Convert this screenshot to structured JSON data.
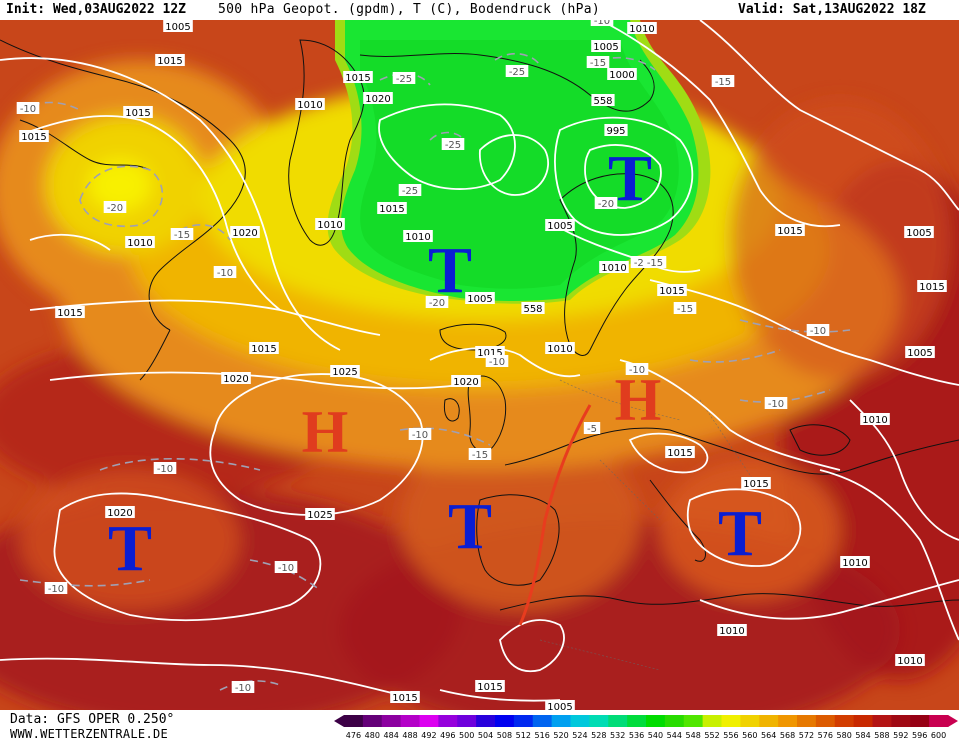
{
  "header": {
    "init": "Init: Wed,03AUG2022 12Z",
    "variables": "500 hPa Geopot. (gpdm), T (C), Bodendruck (hPa)",
    "valid": "Valid: Sat,13AUG2022 18Z"
  },
  "footer": {
    "data_source": "Data: GFS OPER 0.250°",
    "website": "WWW.WETTERZENTRALE.DE"
  },
  "legend": {
    "values": [
      "476",
      "480",
      "484",
      "488",
      "492",
      "496",
      "500",
      "504",
      "508",
      "512",
      "516",
      "520",
      "524",
      "528",
      "532",
      "536",
      "540",
      "544",
      "548",
      "552",
      "556",
      "560",
      "564",
      "568",
      "572",
      "576",
      "580",
      "584",
      "588",
      "592",
      "596",
      "600"
    ],
    "colors": [
      "#3c0046",
      "#640078",
      "#8c00a0",
      "#b400c8",
      "#dc00f0",
      "#9600dc",
      "#6e00dc",
      "#2800dc",
      "#0000f0",
      "#0028f0",
      "#0064f0",
      "#00a0f0",
      "#00c8dc",
      "#00dcb4",
      "#00dc78",
      "#00dc3c",
      "#00dc00",
      "#28dc00",
      "#50e600",
      "#c8f000",
      "#f0f000",
      "#f0d200",
      "#f0b400",
      "#f09600",
      "#e67800",
      "#dc5a00",
      "#d23c00",
      "#c82800",
      "#b41414",
      "#a00a14",
      "#960014",
      "#c80050"
    ]
  },
  "pressure_centers": [
    {
      "type": "T",
      "color": "#0a1ed2"
    },
    {
      "type": "T",
      "color": "#0a1ed2"
    },
    {
      "type": "T",
      "color": "#0a1ed2"
    },
    {
      "type": "T",
      "color": "#0a1ed2"
    },
    {
      "type": "T",
      "color": "#0a1ed2"
    },
    {
      "type": "H",
      "color": "#e03c1e"
    },
    {
      "type": "H",
      "color": "#e03c1e"
    }
  ],
  "isobar_labels": [
    "1005",
    "1015",
    "1015",
    "1015",
    "1015",
    "1020",
    "1010",
    "1015",
    "1010",
    "1015",
    "1020",
    "1015",
    "1010",
    "1010",
    "1005",
    "1005",
    "1000",
    "995",
    "1015",
    "1005",
    "1010",
    "1015",
    "1010",
    "1010",
    "1005",
    "1015",
    "1025",
    "1020",
    "1025",
    "1020",
    "1010",
    "1015",
    "1015",
    "1015",
    "1010",
    "1010",
    "1010",
    "1020",
    "1005",
    "1015",
    "1015",
    "1005",
    "558",
    "558"
  ],
  "temperature_labels": [
    "-10",
    "-20",
    "-15",
    "-10",
    "-25",
    "-25",
    "-25",
    "-25",
    "-20",
    "-20",
    "-15",
    "-15",
    "-20",
    "-10",
    "-15",
    "-10",
    "-10",
    "-15",
    "-10",
    "-10",
    "-10",
    "-10",
    "-10",
    "-10",
    "-5",
    "-10",
    "-15",
    "-20"
  ]
}
